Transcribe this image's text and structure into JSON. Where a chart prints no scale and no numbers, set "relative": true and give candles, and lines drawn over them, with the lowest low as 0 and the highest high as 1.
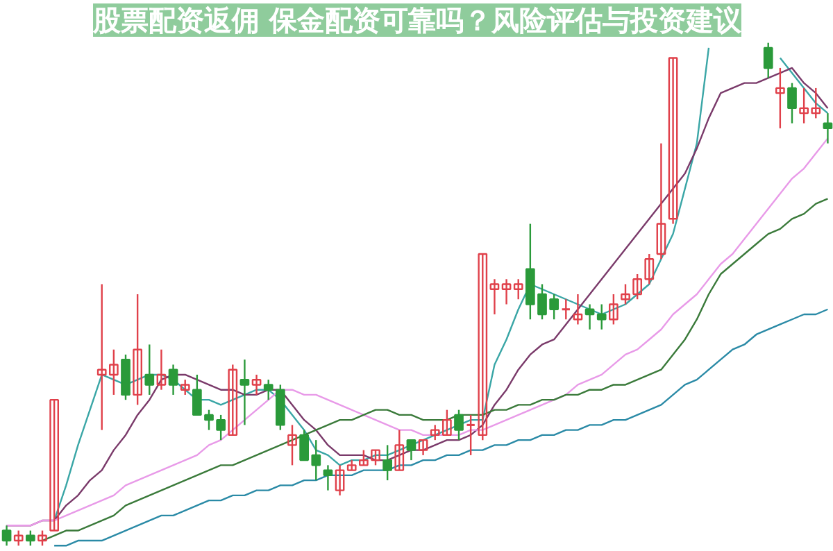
{
  "chart_data": {
    "type": "candlestick",
    "title": "股票配资返佣 保金配资可靠吗？风险评估与投资建议",
    "relative": true,
    "categories": [
      null,
      null,
      null,
      null,
      null,
      null,
      null,
      null,
      null,
      null,
      null,
      null,
      null,
      null,
      null,
      null,
      null,
      null,
      null,
      null,
      null,
      null,
      null,
      null,
      null,
      null,
      null,
      null,
      null,
      null,
      null,
      null,
      null,
      null,
      null,
      null,
      null,
      null,
      null,
      null,
      null,
      null,
      null,
      null,
      null,
      null,
      null,
      null,
      null,
      null,
      null,
      null,
      null,
      null,
      null,
      null,
      null,
      null,
      null,
      null,
      null,
      null,
      null,
      null,
      null,
      null,
      null,
      null,
      null,
      null
    ],
    "ohlc": [
      [
        0.03,
        0.04,
        0.0,
        0.01
      ],
      [
        0.01,
        0.03,
        0.0,
        0.02
      ],
      [
        0.02,
        0.03,
        0.0,
        0.01
      ],
      [
        0.01,
        0.03,
        0.0,
        0.02
      ],
      [
        0.03,
        0.29,
        0.03,
        0.29
      ],
      null,
      null,
      null,
      [
        0.34,
        0.52,
        0.23,
        0.35
      ],
      [
        0.34,
        0.39,
        0.3,
        0.36
      ],
      [
        0.37,
        0.38,
        0.29,
        0.3
      ],
      [
        0.3,
        0.5,
        0.28,
        0.39
      ],
      [
        0.34,
        0.4,
        0.3,
        0.32
      ],
      [
        0.32,
        0.39,
        0.31,
        0.34
      ],
      [
        0.35,
        0.36,
        0.3,
        0.32
      ],
      [
        0.31,
        0.33,
        0.3,
        0.32
      ],
      [
        0.31,
        0.34,
        0.26,
        0.26
      ],
      [
        0.26,
        0.27,
        0.23,
        0.25
      ],
      [
        0.25,
        0.26,
        0.21,
        0.23
      ],
      [
        0.22,
        0.36,
        0.22,
        0.35
      ],
      [
        0.33,
        0.37,
        0.24,
        0.32
      ],
      [
        0.32,
        0.34,
        0.3,
        0.33
      ],
      [
        0.32,
        0.33,
        0.29,
        0.31
      ],
      [
        0.31,
        0.32,
        0.23,
        0.24
      ],
      [
        0.2,
        0.24,
        0.16,
        0.22
      ],
      [
        0.22,
        0.23,
        0.17,
        0.17
      ],
      [
        0.18,
        0.21,
        0.13,
        0.16
      ],
      [
        0.15,
        0.16,
        0.11,
        0.14
      ],
      [
        0.11,
        0.16,
        0.1,
        0.15
      ],
      [
        0.15,
        0.17,
        0.15,
        0.16
      ],
      [
        0.16,
        0.19,
        0.16,
        0.17
      ],
      [
        0.17,
        0.19,
        0.16,
        0.19
      ],
      [
        0.17,
        0.2,
        0.13,
        0.15
      ],
      [
        0.15,
        0.23,
        0.15,
        0.2
      ],
      [
        0.21,
        0.21,
        0.17,
        0.19
      ],
      [
        0.19,
        0.21,
        0.18,
        0.21
      ],
      [
        0.22,
        0.24,
        0.21,
        0.23
      ],
      [
        0.22,
        0.27,
        0.22,
        0.25
      ],
      [
        0.26,
        0.27,
        0.21,
        0.23
      ],
      [
        0.24,
        0.26,
        0.18,
        0.24
      ],
      [
        0.22,
        0.58,
        0.21,
        0.58
      ],
      [
        0.51,
        0.53,
        0.46,
        0.52
      ],
      [
        0.51,
        0.53,
        0.48,
        0.52
      ],
      [
        0.51,
        0.53,
        0.49,
        0.52
      ],
      [
        0.55,
        0.64,
        0.45,
        0.48
      ],
      [
        0.5,
        0.52,
        0.45,
        0.46
      ],
      [
        0.49,
        0.5,
        0.45,
        0.47
      ],
      [
        0.47,
        0.49,
        0.45,
        0.47
      ],
      [
        0.45,
        0.5,
        0.44,
        0.46
      ],
      [
        0.47,
        0.48,
        0.43,
        0.46
      ],
      [
        0.46,
        0.48,
        0.43,
        0.45
      ],
      [
        0.45,
        0.5,
        0.44,
        0.48
      ],
      [
        0.49,
        0.52,
        0.48,
        0.5
      ],
      [
        0.5,
        0.54,
        0.49,
        0.53
      ],
      [
        0.53,
        0.58,
        0.52,
        0.57
      ],
      [
        0.58,
        0.8,
        0.57,
        0.64
      ],
      [
        0.65,
        0.97,
        0.64,
        0.97
      ],
      null,
      null,
      null,
      null,
      null,
      null,
      null,
      [
        0.99,
        1.0,
        0.93,
        0.95
      ],
      [
        0.9,
        0.95,
        0.83,
        0.91
      ],
      [
        0.91,
        0.92,
        0.84,
        0.87
      ],
      [
        0.86,
        0.91,
        0.84,
        0.87
      ],
      [
        0.86,
        0.91,
        0.85,
        0.87
      ],
      [
        0.84,
        0.86,
        0.8,
        0.83
      ]
    ],
    "series": [
      {
        "type": "line",
        "color": "#3aa6a6",
        "values": [
          null,
          null,
          null,
          null,
          0.05,
          0.12,
          0.2,
          0.27,
          0.34,
          0.33,
          0.32,
          0.33,
          0.34,
          0.34,
          0.33,
          0.31,
          0.29,
          0.29,
          0.28,
          0.29,
          0.3,
          0.31,
          0.31,
          0.29,
          0.26,
          0.23,
          0.19,
          0.18,
          0.16,
          0.17,
          0.17,
          0.18,
          0.18,
          0.19,
          0.2,
          0.21,
          0.22,
          0.23,
          0.24,
          0.25,
          0.25,
          0.36,
          0.41,
          0.47,
          0.52,
          0.51,
          0.5,
          0.49,
          0.48,
          0.47,
          0.46,
          0.47,
          0.48,
          0.5,
          0.52,
          0.57,
          0.62,
          0.71,
          0.8,
          0.99,
          null,
          null,
          null,
          null,
          null,
          0.97,
          0.94,
          0.91,
          0.88,
          0.86
        ]
      },
      {
        "type": "line",
        "color": "#7a3a6a",
        "values": [
          0.04,
          0.04,
          0.04,
          0.05,
          0.05,
          0.08,
          0.1,
          0.13,
          0.15,
          0.19,
          0.22,
          0.26,
          0.29,
          0.33,
          0.34,
          0.34,
          0.33,
          0.32,
          0.31,
          0.31,
          0.3,
          0.3,
          0.31,
          0.31,
          0.28,
          0.25,
          0.23,
          0.2,
          0.18,
          0.18,
          0.18,
          0.17,
          0.17,
          0.18,
          0.19,
          0.19,
          0.2,
          0.21,
          0.21,
          0.22,
          0.24,
          0.28,
          0.31,
          0.35,
          0.38,
          0.4,
          0.41,
          0.44,
          0.47,
          0.5,
          0.53,
          0.56,
          0.59,
          0.62,
          0.65,
          0.68,
          0.71,
          0.74,
          0.79,
          0.85,
          0.9,
          0.91,
          0.92,
          0.92,
          0.93,
          0.94,
          0.95,
          0.92,
          0.9,
          0.87
        ]
      },
      {
        "type": "line",
        "color": "#e89ae8",
        "values": [
          0.04,
          0.04,
          0.04,
          0.05,
          0.05,
          0.06,
          0.07,
          0.08,
          0.09,
          0.1,
          0.12,
          0.13,
          0.14,
          0.15,
          0.16,
          0.17,
          0.18,
          0.2,
          0.21,
          0.23,
          0.25,
          0.27,
          0.29,
          0.31,
          0.31,
          0.3,
          0.3,
          0.29,
          0.28,
          0.27,
          0.26,
          0.25,
          0.24,
          0.23,
          0.23,
          0.22,
          0.22,
          0.22,
          0.22,
          0.23,
          0.23,
          0.24,
          0.25,
          0.26,
          0.27,
          0.28,
          0.29,
          0.3,
          0.32,
          0.33,
          0.34,
          0.36,
          0.38,
          0.39,
          0.41,
          0.43,
          0.46,
          0.48,
          0.5,
          0.53,
          0.56,
          0.58,
          0.61,
          0.64,
          0.67,
          0.7,
          0.73,
          0.75,
          0.78,
          0.81
        ]
      },
      {
        "type": "line",
        "color": "#3a7a3a",
        "values": [
          null,
          null,
          null,
          0.01,
          0.02,
          0.03,
          0.03,
          0.04,
          0.05,
          0.06,
          0.08,
          0.09,
          0.1,
          0.11,
          0.12,
          0.13,
          0.14,
          0.15,
          0.16,
          0.16,
          0.17,
          0.18,
          0.19,
          0.2,
          0.21,
          0.22,
          0.23,
          0.24,
          0.25,
          0.25,
          0.26,
          0.27,
          0.27,
          0.26,
          0.26,
          0.25,
          0.25,
          0.25,
          0.26,
          0.26,
          0.26,
          0.27,
          0.27,
          0.28,
          0.28,
          0.29,
          0.29,
          0.3,
          0.3,
          0.31,
          0.31,
          0.32,
          0.32,
          0.33,
          0.34,
          0.35,
          0.38,
          0.41,
          0.45,
          0.5,
          0.54,
          0.56,
          0.58,
          0.6,
          0.62,
          0.63,
          0.65,
          0.66,
          0.68,
          0.69
        ]
      },
      {
        "type": "line",
        "color": "#2a8aa6",
        "values": [
          null,
          null,
          null,
          null,
          0.0,
          0.0,
          0.01,
          0.01,
          0.01,
          0.02,
          0.03,
          0.04,
          0.05,
          0.06,
          0.06,
          0.07,
          0.08,
          0.09,
          0.09,
          0.1,
          0.1,
          0.11,
          0.11,
          0.12,
          0.12,
          0.13,
          0.13,
          0.14,
          0.14,
          0.14,
          0.15,
          0.15,
          0.15,
          0.16,
          0.16,
          0.17,
          0.17,
          0.18,
          0.18,
          0.19,
          0.19,
          0.2,
          0.2,
          0.21,
          0.21,
          0.22,
          0.22,
          0.23,
          0.23,
          0.24,
          0.24,
          0.25,
          0.25,
          0.26,
          0.27,
          0.28,
          0.3,
          0.32,
          0.33,
          0.35,
          0.37,
          0.39,
          0.4,
          0.42,
          0.43,
          0.44,
          0.45,
          0.46,
          0.46,
          0.47
        ]
      }
    ]
  }
}
